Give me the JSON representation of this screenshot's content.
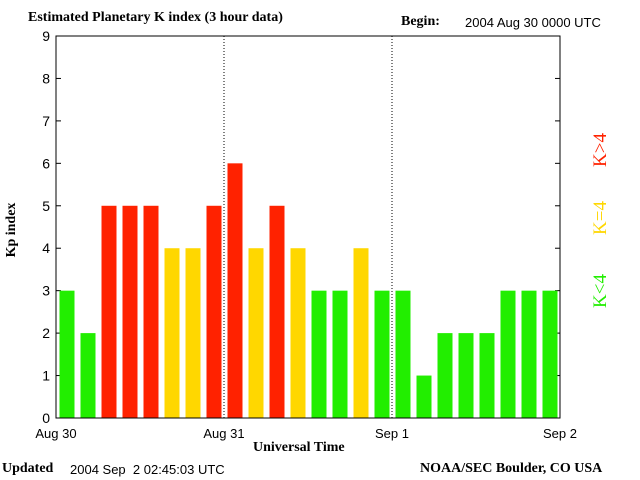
{
  "header": {
    "title": "Estimated Planetary K index (3 hour data)",
    "begin_label": "Begin:",
    "begin_value": "2004 Aug 30 0000 UTC"
  },
  "footer": {
    "updated_label": "Updated",
    "updated_value": "2004 Sep  2 02:45:03 UTC",
    "credit": "NOAA/SEC Boulder, CO USA"
  },
  "legend": {
    "high": "K>4",
    "equal": "K=4",
    "low": "K<4"
  },
  "colors": {
    "high": "#ff2200",
    "equal": "#ffd700",
    "low": "#22ee00"
  },
  "chart_data": {
    "type": "bar",
    "title": "Estimated Planetary K index (3 hour data)",
    "xlabel": "Universal Time",
    "ylabel": "Kp index",
    "ylim": [
      0,
      9
    ],
    "yticks": [
      "0",
      "1",
      "2",
      "3",
      "4",
      "5",
      "6",
      "7",
      "8",
      "9"
    ],
    "xticks": [
      "Aug 30",
      "Aug 31",
      "Sep 1",
      "Sep 2"
    ],
    "day_dividers": [
      "Aug 31",
      "Sep 1"
    ],
    "bars_per_day": 8,
    "values": [
      3,
      2,
      5,
      5,
      5,
      4,
      4,
      5,
      6,
      4,
      5,
      4,
      3,
      3,
      4,
      3,
      3,
      1,
      2,
      2,
      2,
      3,
      3,
      3
    ],
    "color_rule": "green if K<4, yellow if K=4, red if K>4"
  }
}
